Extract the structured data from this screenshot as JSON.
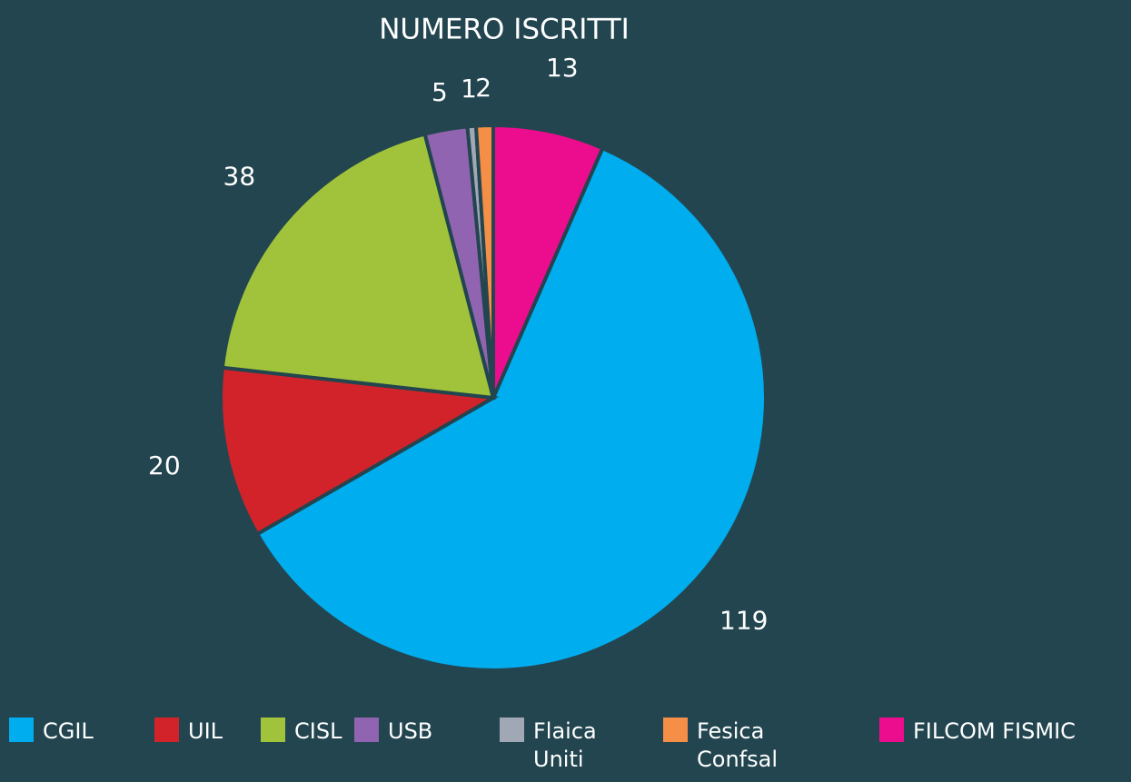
{
  "chart_data": {
    "type": "pie",
    "title": "NUMERO ISCRITTI",
    "categories": [
      "CGIL",
      "UIL",
      "CISL",
      "USB",
      "Flaica Uniti",
      "Fesica Confsal",
      "FILCOM FISMIC"
    ],
    "values": [
      119,
      20,
      38,
      5,
      1,
      2,
      13
    ],
    "colors": [
      "#00adee",
      "#d2232a",
      "#a1c33b",
      "#9064b0",
      "#a0a8b5",
      "#f58f47",
      "#ec0d8e"
    ],
    "legend": "bottom"
  }
}
